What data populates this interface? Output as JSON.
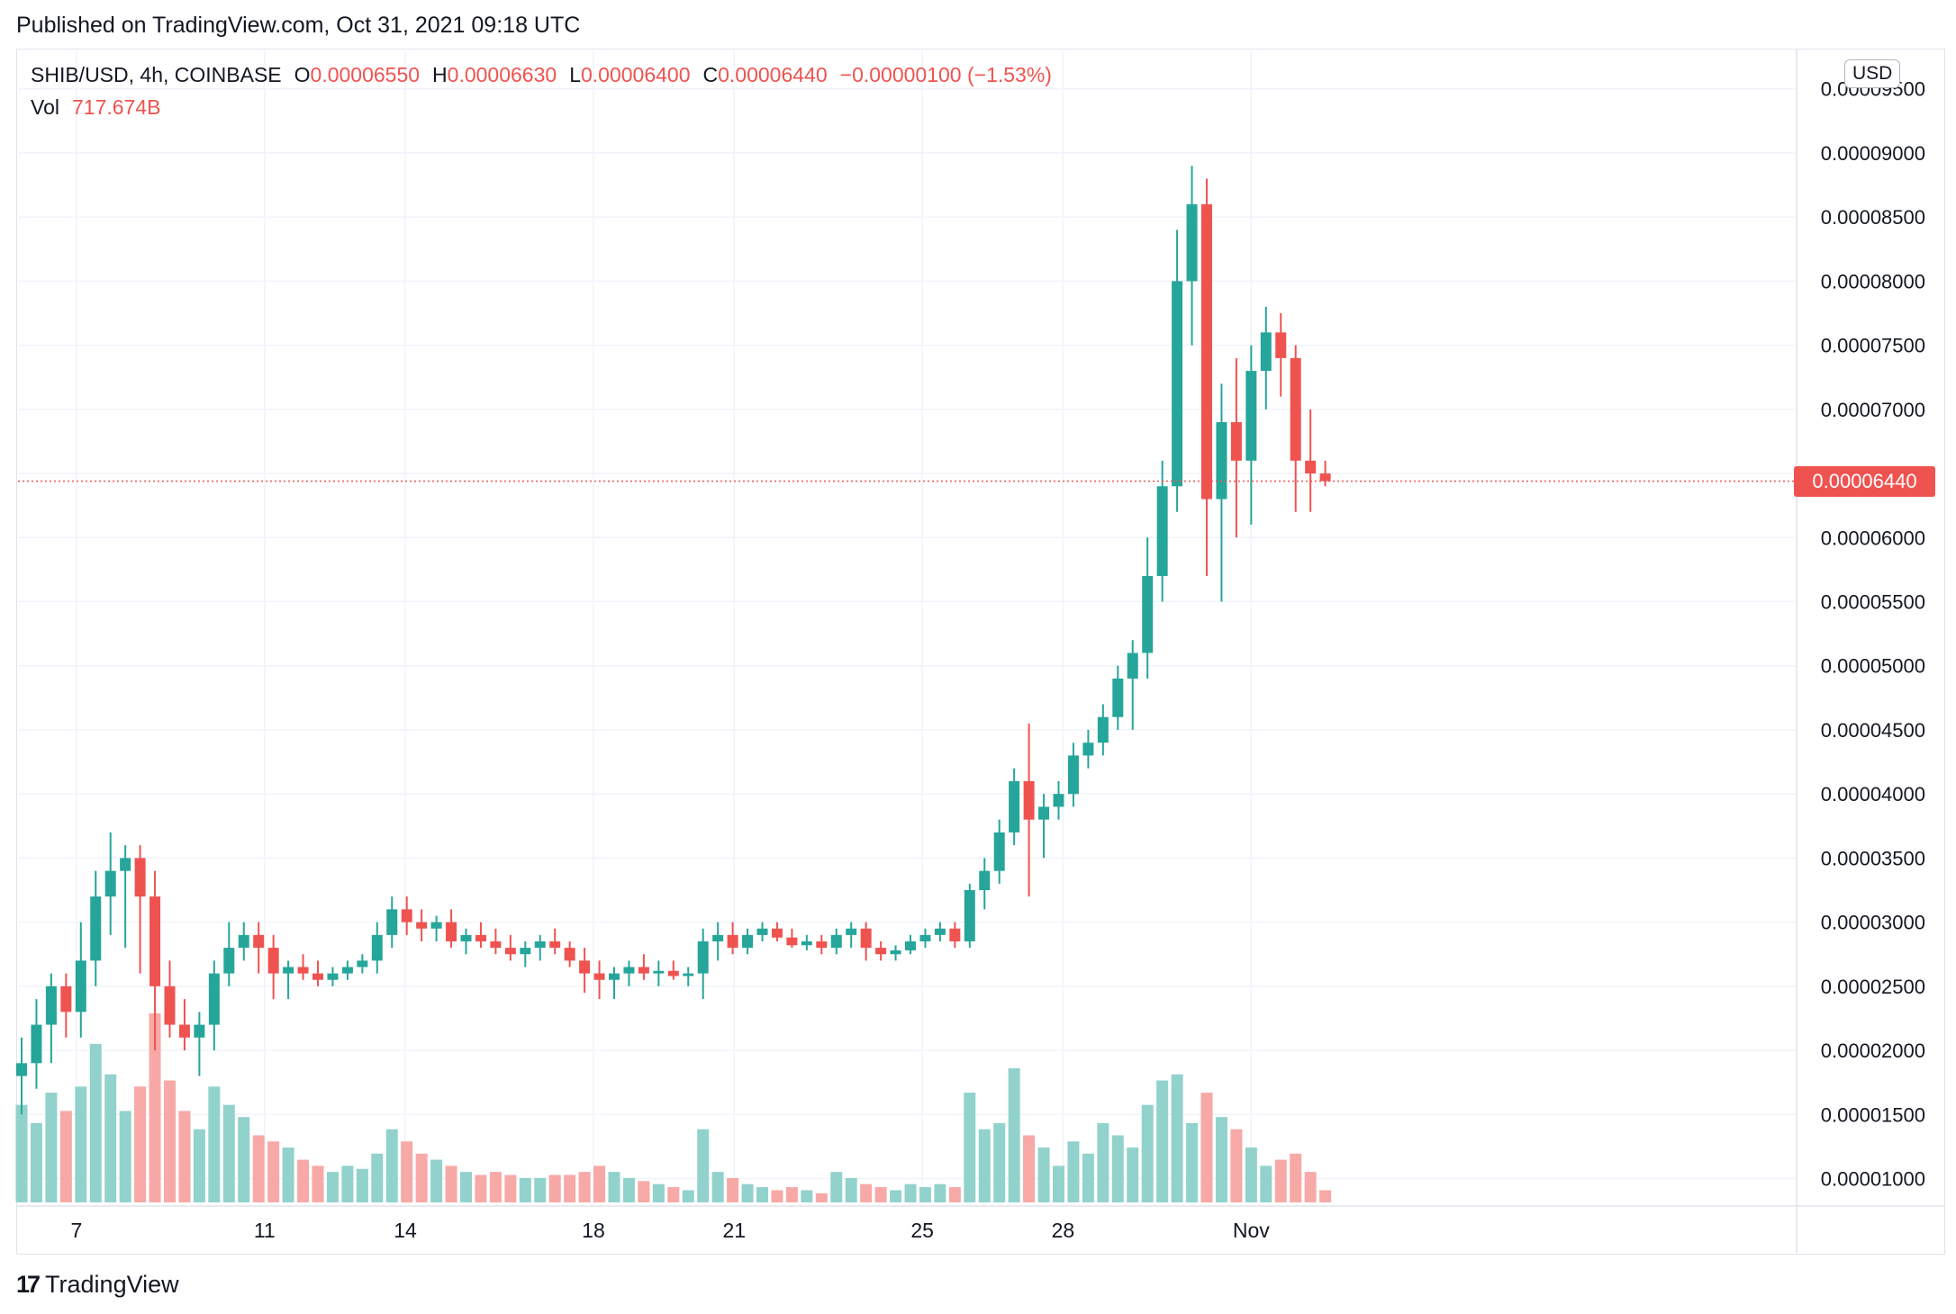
{
  "published": "Published on TradingView.com, Oct 31, 2021 09:18 UTC",
  "legend": {
    "symbol": "SHIB/USD, 4h, COINBASE",
    "open_label": "O",
    "open": "0.00006550",
    "high_label": "H",
    "high": "0.00006630",
    "low_label": "L",
    "low": "0.00006400",
    "close_label": "C",
    "close": "0.00006440",
    "change": "−0.00000100 (−1.53%)",
    "vol_label": "Vol",
    "vol": "717.674B"
  },
  "currency": "USD",
  "last_price": "0.00006440",
  "footer": {
    "brand": "TradingView"
  },
  "colors": {
    "up": "#26a69a",
    "down": "#ef5350",
    "vol_up": "#92d2cc",
    "vol_down": "#f7a9a7",
    "grid": "#f0f3fa"
  },
  "chart_data": {
    "type": "candlestick",
    "title": "SHIB/USD, 4h, COINBASE",
    "ylim": [
      8e-06,
      9.8e-05
    ],
    "y_ticks": [
      "0.00009500",
      "0.00009000",
      "0.00008500",
      "0.00008000",
      "0.00007500",
      "0.00007000",
      "0.00006500",
      "0.00006000",
      "0.00005500",
      "0.00005000",
      "0.00004500",
      "0.00004000",
      "0.00003500",
      "0.00003000",
      "0.00002500",
      "0.00002000",
      "0.00001500",
      "0.00001000"
    ],
    "x_ticks": [
      {
        "label": "7",
        "index": 3.7
      },
      {
        "label": "11",
        "index": 16.4
      },
      {
        "label": "14",
        "index": 25.9
      },
      {
        "label": "18",
        "index": 38.6
      },
      {
        "label": "21",
        "index": 48.1
      },
      {
        "label": "25",
        "index": 60.8
      },
      {
        "label": "28",
        "index": 70.3
      },
      {
        "label": "Nov",
        "index": 83.0
      }
    ],
    "series_units": "USD per SHIB (x1e-5 in candles array)",
    "candles": [
      [
        1.8,
        2.1,
        1.5,
        1.9,
        1.6
      ],
      [
        1.9,
        2.4,
        1.7,
        2.2,
        1.3
      ],
      [
        2.2,
        2.6,
        1.9,
        2.5,
        1.8
      ],
      [
        2.5,
        2.6,
        2.1,
        2.3,
        1.5
      ],
      [
        2.3,
        3.0,
        2.1,
        2.7,
        1.9
      ],
      [
        2.7,
        3.4,
        2.5,
        3.2,
        2.6
      ],
      [
        3.2,
        3.7,
        2.9,
        3.4,
        2.1
      ],
      [
        3.4,
        3.6,
        2.8,
        3.5,
        1.5
      ],
      [
        3.5,
        3.6,
        2.6,
        3.2,
        1.9
      ],
      [
        3.2,
        3.4,
        2.0,
        2.5,
        3.1
      ],
      [
        2.5,
        2.7,
        2.1,
        2.2,
        2.0
      ],
      [
        2.2,
        2.4,
        2.0,
        2.1,
        1.5
      ],
      [
        2.1,
        2.3,
        1.8,
        2.2,
        1.2
      ],
      [
        2.2,
        2.7,
        2.0,
        2.6,
        1.9
      ],
      [
        2.6,
        3.0,
        2.5,
        2.8,
        1.6
      ],
      [
        2.8,
        3.0,
        2.7,
        2.9,
        1.4
      ],
      [
        2.9,
        3.0,
        2.6,
        2.8,
        1.1
      ],
      [
        2.8,
        2.9,
        2.4,
        2.6,
        1.0
      ],
      [
        2.6,
        2.7,
        2.4,
        2.65,
        0.9
      ],
      [
        2.65,
        2.75,
        2.55,
        2.6,
        0.7
      ],
      [
        2.6,
        2.7,
        2.5,
        2.55,
        0.6
      ],
      [
        2.55,
        2.65,
        2.5,
        2.6,
        0.5
      ],
      [
        2.6,
        2.7,
        2.55,
        2.65,
        0.6
      ],
      [
        2.65,
        2.75,
        2.6,
        2.7,
        0.55
      ],
      [
        2.7,
        3.0,
        2.6,
        2.9,
        0.8
      ],
      [
        2.9,
        3.2,
        2.8,
        3.1,
        1.2
      ],
      [
        3.1,
        3.2,
        2.9,
        3.0,
        1.0
      ],
      [
        3.0,
        3.1,
        2.85,
        2.95,
        0.8
      ],
      [
        2.95,
        3.05,
        2.85,
        3.0,
        0.7
      ],
      [
        3.0,
        3.1,
        2.8,
        2.85,
        0.6
      ],
      [
        2.85,
        2.95,
        2.75,
        2.9,
        0.5
      ],
      [
        2.9,
        3.0,
        2.8,
        2.85,
        0.45
      ],
      [
        2.85,
        2.95,
        2.75,
        2.8,
        0.5
      ],
      [
        2.8,
        2.9,
        2.7,
        2.75,
        0.45
      ],
      [
        2.75,
        2.85,
        2.65,
        2.8,
        0.4
      ],
      [
        2.8,
        2.9,
        2.7,
        2.85,
        0.4
      ],
      [
        2.85,
        2.95,
        2.75,
        2.8,
        0.45
      ],
      [
        2.8,
        2.85,
        2.65,
        2.7,
        0.45
      ],
      [
        2.7,
        2.8,
        2.45,
        2.6,
        0.5
      ],
      [
        2.6,
        2.7,
        2.4,
        2.55,
        0.6
      ],
      [
        2.55,
        2.65,
        2.4,
        2.6,
        0.5
      ],
      [
        2.6,
        2.7,
        2.5,
        2.65,
        0.4
      ],
      [
        2.65,
        2.75,
        2.55,
        2.6,
        0.35
      ],
      [
        2.6,
        2.7,
        2.5,
        2.62,
        0.3
      ],
      [
        2.62,
        2.7,
        2.55,
        2.58,
        0.25
      ],
      [
        2.58,
        2.65,
        2.5,
        2.6,
        0.2
      ],
      [
        2.6,
        2.95,
        2.4,
        2.85,
        1.2
      ],
      [
        2.85,
        3.0,
        2.7,
        2.9,
        0.5
      ],
      [
        2.9,
        3.0,
        2.75,
        2.8,
        0.4
      ],
      [
        2.8,
        2.95,
        2.75,
        2.9,
        0.3
      ],
      [
        2.9,
        3.0,
        2.85,
        2.95,
        0.25
      ],
      [
        2.95,
        3.0,
        2.85,
        2.88,
        0.2
      ],
      [
        2.88,
        2.95,
        2.8,
        2.82,
        0.25
      ],
      [
        2.82,
        2.9,
        2.78,
        2.85,
        0.2
      ],
      [
        2.85,
        2.9,
        2.75,
        2.8,
        0.15
      ],
      [
        2.8,
        2.95,
        2.75,
        2.9,
        0.5
      ],
      [
        2.9,
        3.0,
        2.8,
        2.95,
        0.4
      ],
      [
        2.95,
        3.0,
        2.7,
        2.8,
        0.3
      ],
      [
        2.8,
        2.85,
        2.7,
        2.75,
        0.25
      ],
      [
        2.75,
        2.82,
        2.7,
        2.78,
        0.2
      ],
      [
        2.78,
        2.9,
        2.75,
        2.85,
        0.3
      ],
      [
        2.85,
        2.95,
        2.8,
        2.9,
        0.25
      ],
      [
        2.9,
        3.0,
        2.85,
        2.95,
        0.3
      ],
      [
        2.95,
        3.0,
        2.8,
        2.85,
        0.25
      ],
      [
        2.85,
        3.3,
        2.8,
        3.25,
        1.8
      ],
      [
        3.25,
        3.5,
        3.1,
        3.4,
        1.2
      ],
      [
        3.4,
        3.8,
        3.3,
        3.7,
        1.3
      ],
      [
        3.7,
        4.2,
        3.6,
        4.1,
        2.2
      ],
      [
        4.1,
        4.55,
        3.2,
        3.8,
        1.1
      ],
      [
        3.8,
        4.0,
        3.5,
        3.9,
        0.9
      ],
      [
        3.9,
        4.1,
        3.8,
        4.0,
        0.6
      ],
      [
        4.0,
        4.4,
        3.9,
        4.3,
        1.0
      ],
      [
        4.3,
        4.5,
        4.2,
        4.4,
        0.8
      ],
      [
        4.4,
        4.7,
        4.3,
        4.6,
        1.3
      ],
      [
        4.6,
        5.0,
        4.5,
        4.9,
        1.1
      ],
      [
        4.9,
        5.2,
        4.5,
        5.1,
        0.9
      ],
      [
        5.1,
        6.0,
        4.9,
        5.7,
        1.6
      ],
      [
        5.7,
        6.6,
        5.5,
        6.4,
        2.0
      ],
      [
        6.4,
        8.4,
        6.2,
        8.0,
        2.1
      ],
      [
        8.0,
        8.9,
        7.5,
        8.6,
        1.3
      ],
      [
        8.6,
        8.8,
        5.7,
        6.3,
        1.8
      ],
      [
        6.3,
        7.2,
        5.5,
        6.9,
        1.4
      ],
      [
        6.9,
        7.4,
        6.0,
        6.6,
        1.2
      ],
      [
        6.6,
        7.5,
        6.1,
        7.3,
        0.9
      ],
      [
        7.3,
        7.8,
        7.0,
        7.6,
        0.6
      ],
      [
        7.6,
        7.75,
        7.1,
        7.4,
        0.7
      ],
      [
        7.4,
        7.5,
        6.2,
        6.6,
        0.8
      ],
      [
        6.6,
        7.0,
        6.2,
        6.5,
        0.5
      ],
      [
        6.5,
        6.6,
        6.4,
        6.44,
        0.2
      ]
    ]
  }
}
